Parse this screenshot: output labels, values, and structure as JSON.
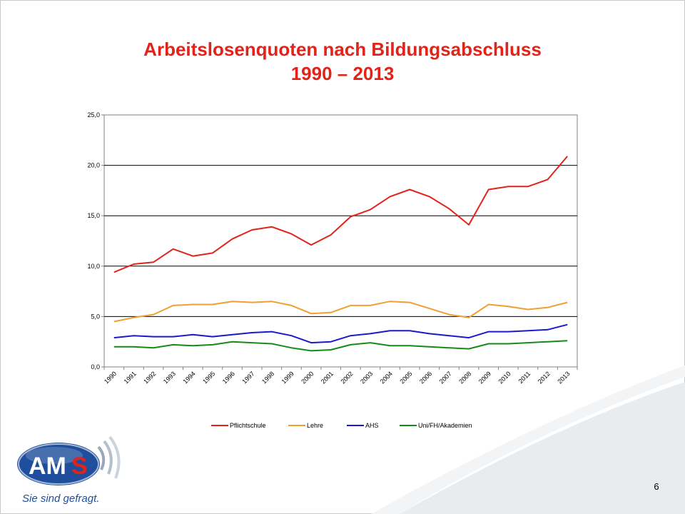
{
  "slide": {
    "title_line1": "Arbeitslosenquoten nach Bildungsabschluss",
    "title_line2": "1990 – 2013",
    "page_number": "6",
    "logo_text": "AMS",
    "tagline": "Sie sind gefragt."
  },
  "colors": {
    "title": "#e2231a",
    "pflichtschule": "#e2231a",
    "lehre": "#f0a030",
    "ahs": "#1a1acc",
    "uni": "#178a1a",
    "logo_blue": "#1f4f9c",
    "logo_red": "#e2231a"
  },
  "chart_data": {
    "type": "line",
    "title": "",
    "xlabel": "",
    "ylabel": "",
    "ylim": [
      0,
      25
    ],
    "ytick_labels": [
      "0,0",
      "5,0",
      "10,0",
      "15,0",
      "20,0",
      "25,0"
    ],
    "grid": true,
    "legend_position": "bottom",
    "x": [
      "1990",
      "1991",
      "1992",
      "1993",
      "1994",
      "1995",
      "1996",
      "1997",
      "1998",
      "1999",
      "2000",
      "2001",
      "2002",
      "2003",
      "2004",
      "2005",
      "2006",
      "2007",
      "2008",
      "2009",
      "2010",
      "2011",
      "2012",
      "2013"
    ],
    "series": [
      {
        "name": "Pflichtschule",
        "color": "#e2231a",
        "values": [
          9.4,
          10.2,
          10.4,
          11.7,
          11.0,
          11.3,
          12.7,
          13.6,
          13.9,
          13.2,
          12.1,
          13.1,
          14.9,
          15.6,
          16.9,
          17.6,
          16.9,
          15.7,
          14.1,
          17.6,
          17.9,
          17.9,
          18.6,
          20.9
        ]
      },
      {
        "name": "Lehre",
        "color": "#f0a030",
        "values": [
          4.5,
          4.9,
          5.2,
          6.1,
          6.2,
          6.2,
          6.5,
          6.4,
          6.5,
          6.1,
          5.3,
          5.4,
          6.1,
          6.1,
          6.5,
          6.4,
          5.8,
          5.2,
          4.9,
          6.2,
          6.0,
          5.7,
          5.9,
          6.4
        ]
      },
      {
        "name": "AHS",
        "color": "#1a1acc",
        "values": [
          2.9,
          3.1,
          3.0,
          3.0,
          3.2,
          3.0,
          3.2,
          3.4,
          3.5,
          3.1,
          2.4,
          2.5,
          3.1,
          3.3,
          3.6,
          3.6,
          3.3,
          3.1,
          2.9,
          3.5,
          3.5,
          3.6,
          3.7,
          4.2
        ]
      },
      {
        "name": "Uni/FH/Akademien",
        "color": "#178a1a",
        "values": [
          2.0,
          2.0,
          1.9,
          2.2,
          2.1,
          2.2,
          2.5,
          2.4,
          2.3,
          1.9,
          1.6,
          1.7,
          2.2,
          2.4,
          2.1,
          2.1,
          2.0,
          1.9,
          1.8,
          2.3,
          2.3,
          2.4,
          2.5,
          2.6
        ]
      }
    ]
  }
}
